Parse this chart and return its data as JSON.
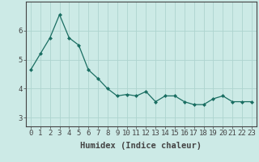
{
  "x": [
    0,
    1,
    2,
    3,
    4,
    5,
    6,
    7,
    8,
    9,
    10,
    11,
    12,
    13,
    14,
    15,
    16,
    17,
    18,
    19,
    20,
    21,
    22,
    23
  ],
  "y": [
    4.65,
    5.2,
    5.75,
    6.55,
    5.75,
    5.5,
    4.65,
    4.35,
    4.0,
    3.75,
    3.8,
    3.75,
    3.9,
    3.55,
    3.75,
    3.75,
    3.55,
    3.45,
    3.45,
    3.65,
    3.75,
    3.55,
    3.55,
    3.55
  ],
  "xlabel": "Humidex (Indice chaleur)",
  "ylim": [
    2.7,
    7.0
  ],
  "xlim": [
    -0.5,
    23.5
  ],
  "line_color": "#1a6e62",
  "marker": "D",
  "marker_size": 2.0,
  "bg_color": "#cceae6",
  "grid_color": "#aed4cf",
  "axis_color": "#444444",
  "yticks": [
    3,
    4,
    5,
    6
  ],
  "xticks": [
    0,
    1,
    2,
    3,
    4,
    5,
    6,
    7,
    8,
    9,
    10,
    11,
    12,
    13,
    14,
    15,
    16,
    17,
    18,
    19,
    20,
    21,
    22,
    23
  ],
  "xlabel_fontsize": 7.5,
  "tick_fontsize": 6.5
}
